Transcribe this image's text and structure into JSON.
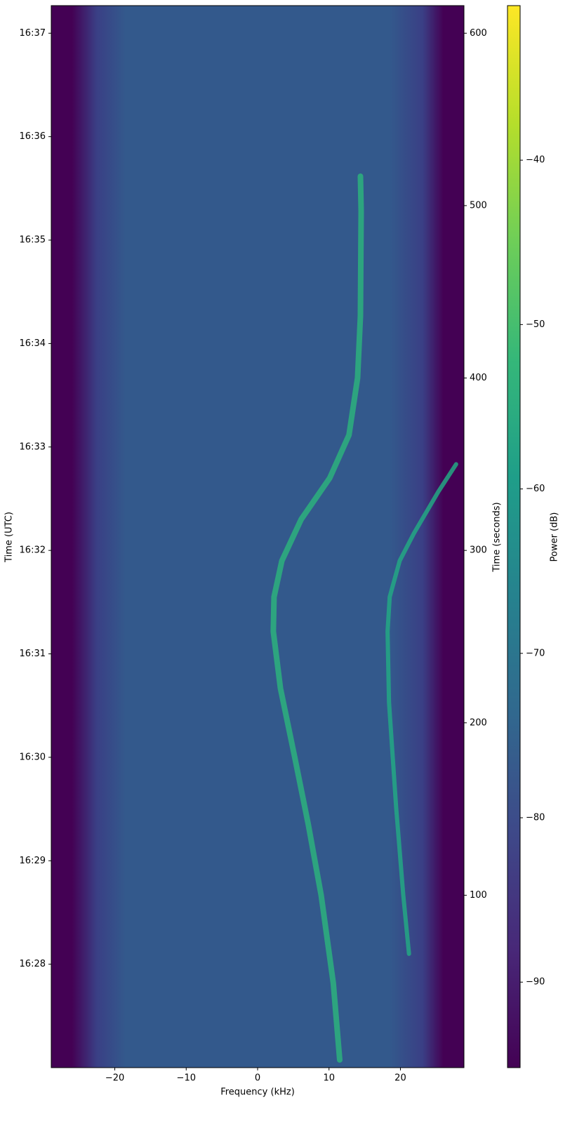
{
  "chart_data": {
    "type": "spectrogram",
    "xlabel": "Frequency (kHz)",
    "ylabel": "Time (UTC)",
    "y2label": "Time (seconds)",
    "colorbar_label": "Power (dB)",
    "xlim": [
      -28.9,
      28.9
    ],
    "xticks": [
      {
        "value": -20,
        "label": "−20"
      },
      {
        "value": -10,
        "label": "−10"
      },
      0,
      10,
      20
    ],
    "ylim": [
      0,
      616
    ],
    "yticks": [
      {
        "value": 60,
        "label": "16:28"
      },
      {
        "value": 120,
        "label": "16:29"
      },
      {
        "value": 180,
        "label": "16:30"
      },
      {
        "value": 240,
        "label": "16:31"
      },
      {
        "value": 300,
        "label": "16:32"
      },
      {
        "value": 360,
        "label": "16:33"
      },
      {
        "value": 420,
        "label": "16:34"
      },
      {
        "value": 480,
        "label": "16:35"
      },
      {
        "value": 540,
        "label": "16:36"
      },
      {
        "value": 600,
        "label": "16:37"
      }
    ],
    "y2lim": [
      0,
      616
    ],
    "y2ticks": [
      100,
      200,
      300,
      400,
      500,
      600
    ],
    "clim": [
      -95.2,
      -30.6
    ],
    "cticks": [
      {
        "value": -40,
        "label": "−40"
      },
      {
        "value": -50,
        "label": "−50"
      },
      {
        "value": -60,
        "label": "−60"
      },
      {
        "value": -70,
        "label": "−70"
      },
      {
        "value": -80,
        "label": "−80"
      },
      {
        "value": -90,
        "label": "−90"
      }
    ],
    "colormap": [
      "#440154",
      "#482878",
      "#3e4989",
      "#31688e",
      "#26828e",
      "#1f9e89",
      "#35b779",
      "#6ece58",
      "#b5de2b",
      "#fde725"
    ],
    "series": [
      {
        "color": "#2db27d",
        "x": [
          11.5,
          10.6,
          8.9,
          7.1,
          5.2,
          3.2,
          2.2,
          2.3,
          3.4,
          6.1,
          10.1,
          12.8,
          14.0,
          14.4,
          14.5,
          14.4
        ],
        "y": [
          4.5,
          49,
          100,
          141,
          180,
          220,
          253,
          273,
          294,
          318,
          342,
          367,
          400,
          436,
          497,
          517
        ]
      },
      {
        "color": "#23a884",
        "x": [
          21.2,
          20.4,
          19.4,
          18.4,
          18.2,
          18.5,
          19.9,
          21.9,
          25.3,
          27.8
        ],
        "y": [
          66,
          100,
          151,
          212,
          253,
          273,
          294,
          310,
          334,
          350
        ]
      }
    ]
  }
}
